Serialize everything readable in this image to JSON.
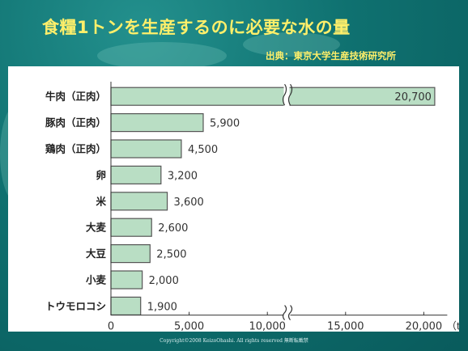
{
  "slide": {
    "title": "食糧1トンを生産するのに必要な水の量",
    "source": "出典：東京大学生産技術研究所",
    "copyright": "Copyright©2008 KeizoOhashi. All rights reserved 無断転載禁",
    "colors": {
      "title": "#ffef6a",
      "background": "#0b6a6a",
      "bar_fill": "#b9dec4",
      "bar_stroke": "#555555"
    }
  },
  "chart_data": {
    "type": "bar",
    "orientation": "horizontal",
    "categories": [
      "牛肉（正肉）",
      "豚肉（正肉）",
      "鶏肉（正肉）",
      "卵",
      "米",
      "大麦",
      "大豆",
      "小麦",
      "トウモロコシ"
    ],
    "values": [
      20700,
      5900,
      4500,
      3200,
      3600,
      2600,
      2500,
      2000,
      1900
    ],
    "value_labels": [
      "20,700",
      "5,900",
      "4,500",
      "3,200",
      "3,600",
      "2,600",
      "2,500",
      "2,000",
      "1,900"
    ],
    "x_ticks": [
      0,
      5000,
      10000,
      15000,
      20000
    ],
    "x_tick_labels": [
      "0",
      "5,000",
      "10,000",
      "15,000",
      "20,000"
    ],
    "x_unit": "（t）",
    "axis_break": {
      "from": 11000,
      "to": 14000
    },
    "xlim": [
      0,
      21500
    ],
    "grid": false,
    "legend": "none"
  }
}
